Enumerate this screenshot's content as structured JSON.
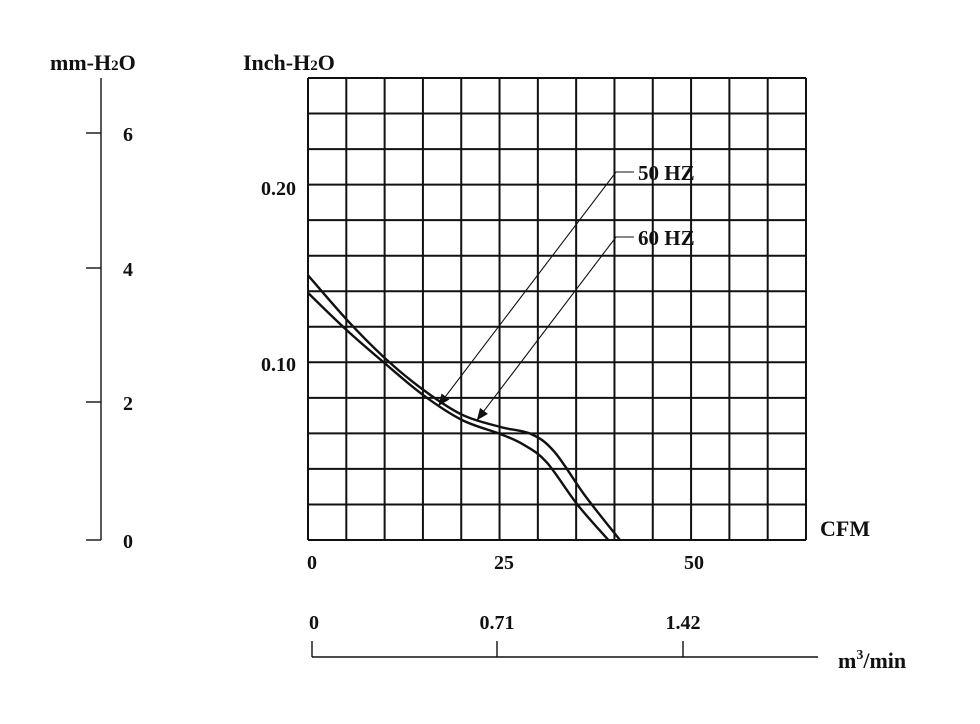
{
  "chart_data": {
    "type": "line",
    "title": "",
    "xlabel": "CFM",
    "x2label_unit": "m",
    "x2label_sup": "3",
    "x2label_rest": "/min",
    "ylabel_left_pre": "mm-H",
    "ylabel_left_sub": "2",
    "ylabel_left_post": "O",
    "ylabel_right_pre": "Inch-H",
    "ylabel_right_sub": "2",
    "ylabel_right_post": "O",
    "xlim": [
      0,
      65
    ],
    "ylim": [
      0,
      0.26
    ],
    "x_ticks": [
      "0",
      "25",
      "50"
    ],
    "x2_ticks": [
      "0",
      "0.71",
      "1.42"
    ],
    "y_ticks": [
      "0.10",
      "0.20"
    ],
    "mm_ticks": [
      "0",
      "2",
      "4",
      "6"
    ],
    "grid": true,
    "series": [
      {
        "name": "50 HZ",
        "x": [
          0,
          5,
          10,
          15,
          20,
          25,
          28,
          31,
          35,
          39
        ],
        "y": [
          0.14,
          0.119,
          0.1,
          0.082,
          0.068,
          0.06,
          0.054,
          0.044,
          0.02,
          0.0
        ]
      },
      {
        "name": "60 HZ",
        "x": [
          0,
          5,
          10,
          15,
          20,
          25,
          29,
          32,
          36,
          40.5
        ],
        "y": [
          0.15,
          0.125,
          0.103,
          0.085,
          0.071,
          0.064,
          0.06,
          0.05,
          0.025,
          0.0
        ]
      }
    ]
  }
}
